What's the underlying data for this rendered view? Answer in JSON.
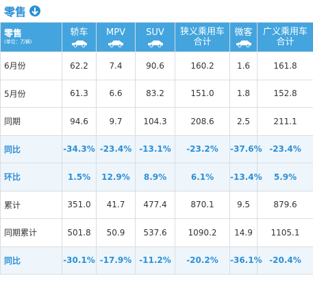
{
  "header": {
    "title": "零售"
  },
  "table": {
    "corner": {
      "title": "零售",
      "unit": "(单位：万辆)"
    },
    "columns": [
      [
        "轿车"
      ],
      [
        "MPV"
      ],
      [
        "SUV"
      ],
      [
        "狭义乘用车",
        "合计"
      ],
      [
        "微客"
      ],
      [
        "广义乘用车",
        "合计"
      ]
    ],
    "rows": [
      {
        "label": "6月份",
        "cells": [
          "62.2",
          "7.4",
          "90.6",
          "160.2",
          "1.6",
          "161.8"
        ]
      },
      {
        "label": "5月份",
        "cells": [
          "61.3",
          "6.6",
          "83.2",
          "151.0",
          "1.8",
          "152.8"
        ]
      },
      {
        "label": "同期",
        "cells": [
          "94.6",
          "9.7",
          "104.3",
          "208.6",
          "2.5",
          "211.1"
        ]
      },
      {
        "label": "同比",
        "highlight": true,
        "cells": [
          "-34.3%",
          "-23.4%",
          "-13.1%",
          "-23.2%",
          "-37.6%",
          "-23.4%"
        ]
      },
      {
        "label": "环比",
        "highlight": true,
        "cells": [
          "1.5%",
          "12.9%",
          "8.9%",
          "6.1%",
          "-13.4%",
          "5.9%"
        ]
      },
      {
        "label": "累计",
        "cells": [
          "351.0",
          "41.7",
          "477.4",
          "870.1",
          "9.5",
          "879.6"
        ]
      },
      {
        "label": "同期累计",
        "cells": [
          "501.8",
          "50.9",
          "537.6",
          "1090.2",
          "14.9",
          "1105.1"
        ]
      },
      {
        "label": "同比",
        "highlight": true,
        "cells": [
          "-30.1%",
          "-17.9%",
          "-11.2%",
          "-20.2%",
          "-36.1%",
          "-20.4%"
        ]
      }
    ]
  }
}
